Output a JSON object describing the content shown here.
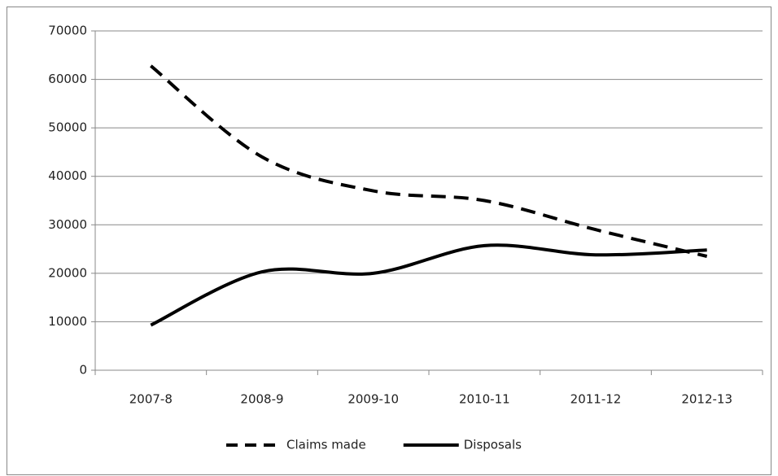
{
  "chart_data": {
    "type": "line",
    "categories": [
      "2007-8",
      "2008-9",
      "2009-10",
      "2010-11",
      "2011-12",
      "2012-13"
    ],
    "series": [
      {
        "name": "Claims made",
        "color": "#000000",
        "line_style": "dashed",
        "values": [
          62800,
          44000,
          37000,
          35000,
          29000,
          23500
        ]
      },
      {
        "name": "Disposals",
        "color": "#000000",
        "line_style": "solid",
        "values": [
          9300,
          20300,
          20000,
          25700,
          23800,
          24800
        ]
      }
    ],
    "ylim": [
      0,
      70000
    ],
    "yticks": [
      0,
      10000,
      20000,
      30000,
      40000,
      50000,
      60000,
      70000
    ],
    "grid": true,
    "smooth": true,
    "legend": "bottom"
  }
}
